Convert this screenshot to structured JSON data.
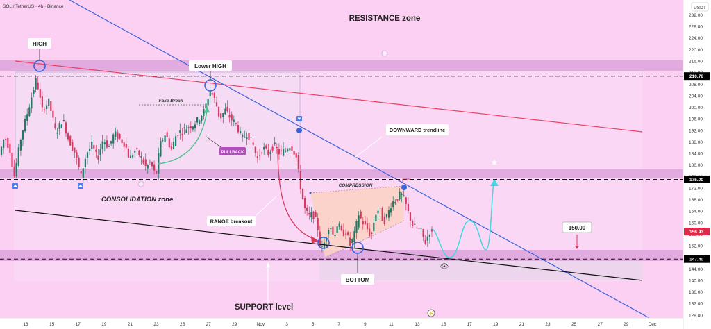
{
  "header": {
    "symbol_line": "SOL / TetherUS · 4h · Binance",
    "currency": "USDT"
  },
  "chart_data": {
    "type": "candlestick",
    "symbol": "SOL / TetherUS",
    "interval": "4h",
    "exchange": "Binance",
    "y_range": [
      127,
      235
    ],
    "y_ticks": [
      128,
      132,
      136,
      140,
      144,
      148,
      152,
      156,
      160,
      164,
      168,
      172,
      176,
      180,
      184,
      188,
      192,
      196,
      200,
      204,
      208,
      212,
      216,
      220,
      224,
      228,
      232
    ],
    "x_ticks": [
      "13",
      "15",
      "17",
      "19",
      "21",
      "23",
      "25",
      "27",
      "29",
      "Nov",
      "3",
      "5",
      "7",
      "9",
      "11",
      "13",
      "15",
      "17",
      "19",
      "21",
      "23",
      "25",
      "27",
      "29",
      "Dec"
    ],
    "price_tags": [
      {
        "label": "210.78",
        "value": 210.78,
        "color": "#000000"
      },
      {
        "label": "175.00",
        "value": 175.0,
        "color": "#000000"
      },
      {
        "label": "156.93",
        "value": 156.93,
        "color": "#e0294a"
      },
      {
        "label": "147.40",
        "value": 147.4,
        "color": "#000000"
      }
    ],
    "horizontal_levels": [
      210.78,
      175.0,
      147.4
    ],
    "zones": [
      {
        "name": "resistance",
        "from": 208.5,
        "to": 212.5
      },
      {
        "name": "consolidation",
        "from": 173.5,
        "to": 176.5
      },
      {
        "name": "support",
        "from": 145.5,
        "to": 149.5
      }
    ],
    "annotations": {
      "resistance_zone": "RESISTANCE zone",
      "consolidation_zone": "CONSOLIDATION zone",
      "support_level": "SUPPORT level",
      "high": "HIGH",
      "lower_high": "Lower HIGH",
      "fake_break": "Fake Break",
      "pullback": "PULLBACK",
      "downward_trendline": "DOWNWARD trendline",
      "compression": "COMPRESSION",
      "range_breakout": "RANGE breakout",
      "bottom": "BOTTOM",
      "target": "150.00"
    }
  },
  "colors": {
    "pink_bg": "#fbcdf2",
    "zone": "#e2a8e0",
    "up": "#1e7a64",
    "down": "#d8385f",
    "blue_line": "#3a63d8",
    "red_line": "#ee3e62",
    "cyan_path": "#43d6e0"
  }
}
